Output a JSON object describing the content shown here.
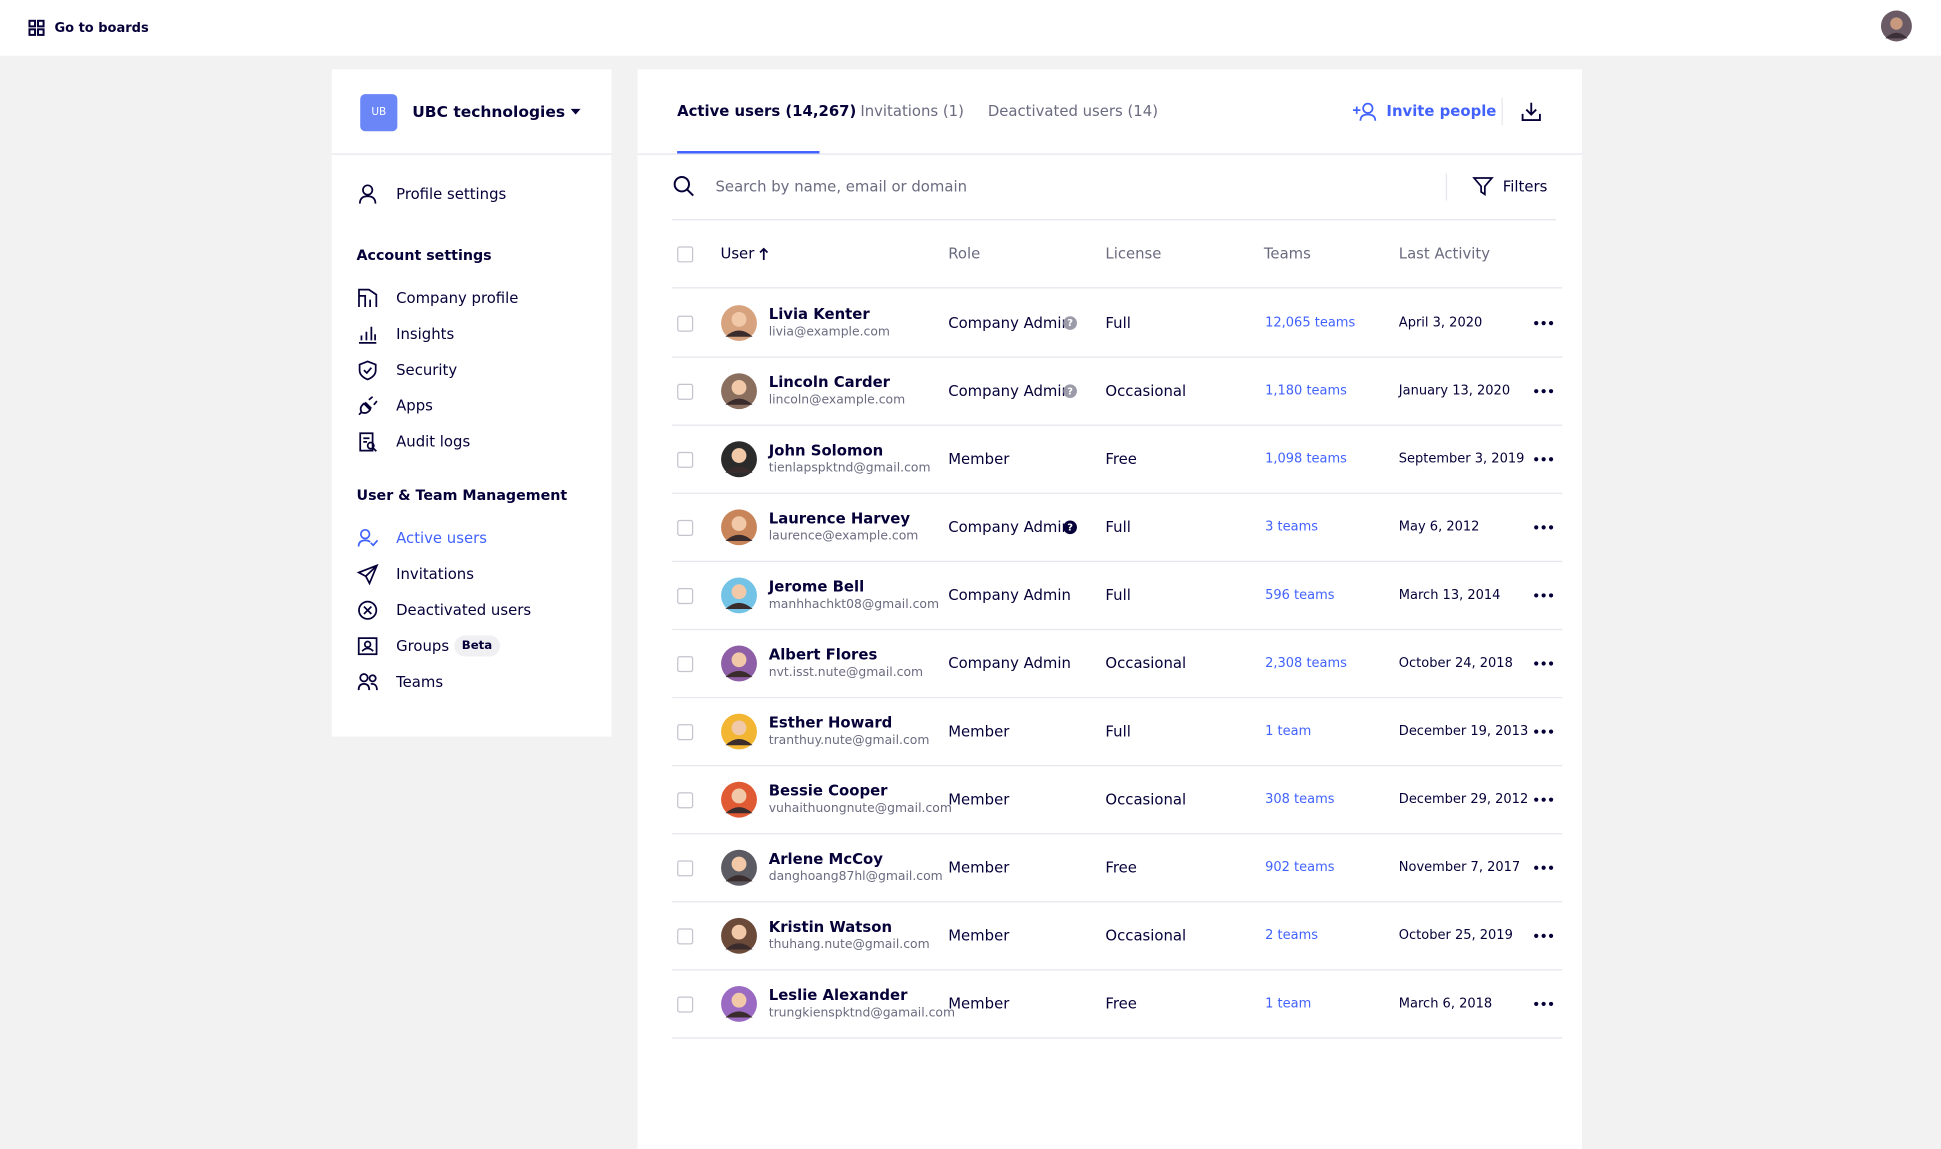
{
  "header": {
    "go_to_boards": "Go to boards"
  },
  "sidebar": {
    "org_initials": "UB",
    "org_name": "UBC technologies",
    "profile_settings": "Profile settings",
    "sections": [
      {
        "title": "Account settings",
        "items": [
          "Company profile",
          "Insights",
          "Security",
          "Apps",
          "Audit logs"
        ]
      },
      {
        "title": "User & Team Management",
        "items": [
          "Active users",
          "Invitations",
          "Deactivated users",
          "Groups",
          "Teams"
        ]
      }
    ],
    "groups_badge": "Beta"
  },
  "tabs": [
    "Active users (14,267)",
    "Invitations (1)",
    "Deactivated users (14)"
  ],
  "invite": "Invite people",
  "search_placeholder": "Search by name, email or domain",
  "filters": "Filters",
  "table": {
    "columns": [
      "User",
      "Role",
      "License",
      "Teams",
      "Last Activity"
    ],
    "rows": [
      {
        "name": "Livia Kenter",
        "email": "livia@example.com",
        "role": "Company Admin",
        "role_badge": "?",
        "license": "Full",
        "teams": "12,065 teams",
        "last_activity": "April 3, 2020"
      },
      {
        "name": "Lincoln Carder",
        "email": "lincoln@example.com",
        "role": "Company Admin",
        "role_badge": "?",
        "license": "Occasional",
        "teams": "1,180 teams",
        "last_activity": "January 13, 2020"
      },
      {
        "name": "John Solomon",
        "email": "tienlapspktnd@gmail.com",
        "role": "Member",
        "license": "Free",
        "teams": "1,098 teams",
        "last_activity": "September 3, 2019"
      },
      {
        "name": "Laurence Harvey",
        "email": "laurence@example.com",
        "role": "Company Admin",
        "role_badge": "?",
        "license": "Full",
        "teams": "3 teams",
        "last_activity": "May 6, 2012"
      },
      {
        "name": "Jerome Bell",
        "email": "manhhachkt08@gmail.com",
        "role": "Company Admin",
        "license": "Full",
        "teams": "596 teams",
        "last_activity": "March 13, 2014"
      },
      {
        "name": "Albert Flores",
        "email": "nvt.isst.nute@gmail.com",
        "role": "Company Admin",
        "license": "Occasional",
        "teams": "2,308 teams",
        "last_activity": "October 24, 2018"
      },
      {
        "name": "Esther Howard",
        "email": "tranthuy.nute@gmail.com",
        "role": "Member",
        "license": "Full",
        "teams": "1 team",
        "last_activity": "December 19, 2013"
      },
      {
        "name": "Bessie Cooper",
        "email": "vuhaithuongnute@gmail.com",
        "role": "Member",
        "license": "Occasional",
        "teams": "308 teams",
        "last_activity": "December 29, 2012"
      },
      {
        "name": "Arlene McCoy",
        "email": "danghoang87hl@gmail.com",
        "role": "Member",
        "license": "Free",
        "teams": "902 teams",
        "last_activity": "November 7, 2017"
      },
      {
        "name": "Kristin Watson",
        "email": "thuhang.nute@gmail.com",
        "role": "Member",
        "license": "Occasional",
        "teams": "2 teams",
        "last_activity": "October 25, 2019"
      },
      {
        "name": "Leslie Alexander",
        "email": "trungkienspktnd@gamail.com",
        "role": "Member",
        "license": "Free",
        "teams": "1 team",
        "last_activity": "March 6, 2018"
      }
    ]
  }
}
